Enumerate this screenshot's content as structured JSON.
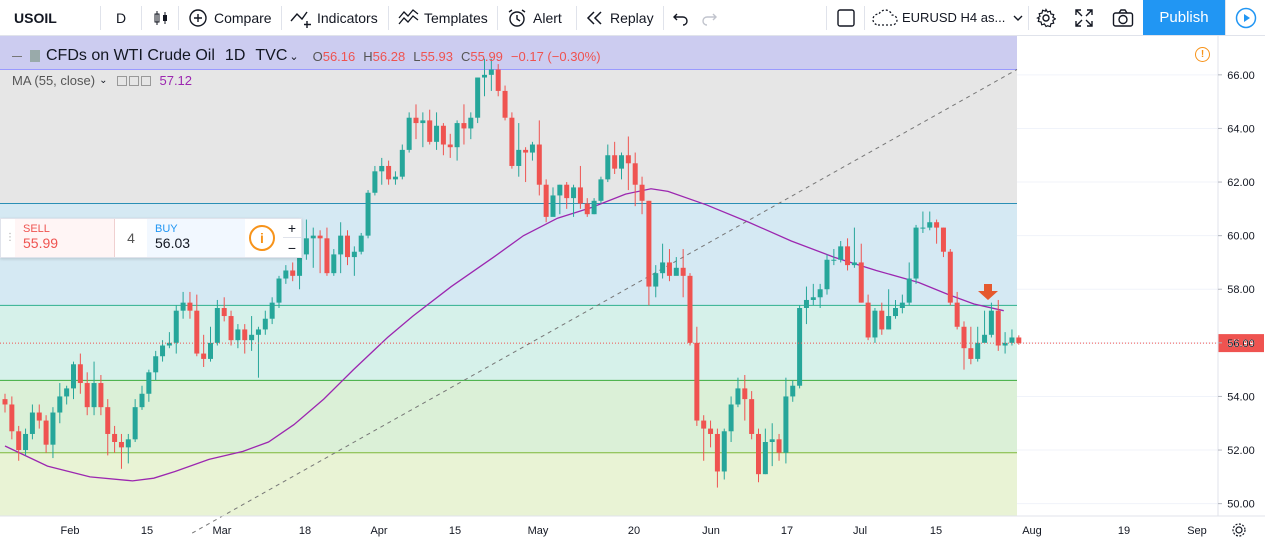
{
  "toolbar": {
    "symbol": "USOIL",
    "interval": "D",
    "compare": "Compare",
    "indicators": "Indicators",
    "templates": "Templates",
    "alert": "Alert",
    "replay": "Replay",
    "layout_name": "EURUSD H4 as...",
    "publish": "Publish"
  },
  "legend": {
    "title": "CFDs on WTI Crude Oil",
    "interval": "1D",
    "source": "TVC",
    "o_label": "O",
    "o": "56.16",
    "h_label": "H",
    "h": "56.28",
    "l_label": "L",
    "l": "55.93",
    "c_label": "C",
    "c": "55.99",
    "change": "−0.17 (−0.30%)",
    "ma_label": "MA (55, close)",
    "ma_value": "57.12"
  },
  "trade_panel": {
    "sell_label": "SELL",
    "sell_price": "55.99",
    "quantity": "4",
    "buy_label": "BUY",
    "buy_price": "56.03"
  },
  "colors": {
    "up": "#26a69a",
    "down": "#ef5350",
    "ma": "#9c27b0",
    "accent": "#2196f3",
    "alert": "#f7931a"
  },
  "chart_data": {
    "type": "candlestick",
    "ylim": [
      49.7,
      67.3
    ],
    "y_ticks": [
      "66.00",
      "64.00",
      "62.00",
      "60.00",
      "58.00",
      "56.00",
      "54.00",
      "52.00",
      "50.00"
    ],
    "x_ticks": [
      "Feb",
      "15",
      "Mar",
      "18",
      "Apr",
      "15",
      "May",
      "20",
      "Jun",
      "17",
      "Jul",
      "15",
      "Aug",
      "19",
      "Sep"
    ],
    "last_price": "55.99",
    "fib_levels": [
      66.2,
      61.2,
      57.4,
      54.6,
      51.9
    ],
    "candles": [
      [
        53.9,
        53.7,
        54.1,
        53.4
      ],
      [
        53.7,
        52.7,
        54.0,
        52.4
      ],
      [
        52.7,
        52.0,
        52.9,
        51.6
      ],
      [
        52.0,
        52.6,
        52.8,
        51.8
      ],
      [
        52.6,
        53.4,
        53.7,
        52.4
      ],
      [
        53.4,
        53.1,
        53.7,
        52.8
      ],
      [
        53.1,
        52.2,
        53.3,
        51.9
      ],
      [
        52.2,
        53.4,
        53.6,
        51.7
      ],
      [
        53.4,
        54.0,
        54.5,
        53.0
      ],
      [
        54.0,
        54.3,
        54.4,
        53.7
      ],
      [
        54.3,
        55.2,
        55.3,
        53.9
      ],
      [
        55.2,
        54.5,
        55.6,
        54.1
      ],
      [
        54.5,
        53.6,
        54.9,
        53.3
      ],
      [
        53.6,
        54.5,
        55.3,
        53.3
      ],
      [
        54.5,
        53.6,
        54.8,
        53.3
      ],
      [
        53.6,
        52.6,
        53.9,
        51.8
      ],
      [
        52.6,
        52.3,
        52.9,
        51.9
      ],
      [
        52.3,
        52.1,
        52.6,
        51.3
      ],
      [
        52.1,
        52.4,
        52.6,
        51.5
      ],
      [
        52.4,
        53.6,
        53.9,
        52.3
      ],
      [
        53.6,
        54.1,
        54.4,
        53.5
      ],
      [
        54.1,
        54.9,
        55.0,
        53.8
      ],
      [
        54.9,
        55.5,
        55.7,
        54.6
      ],
      [
        55.5,
        55.9,
        56.1,
        55.3
      ],
      [
        55.9,
        56.0,
        56.4,
        55.8
      ],
      [
        56.0,
        57.2,
        57.4,
        55.6
      ],
      [
        57.2,
        57.5,
        57.9,
        56.9
      ],
      [
        57.5,
        57.2,
        57.9,
        56.9
      ],
      [
        57.2,
        55.6,
        57.8,
        55.5
      ],
      [
        55.6,
        55.4,
        56.3,
        55.1
      ],
      [
        55.4,
        56.0,
        56.6,
        55.3
      ],
      [
        56.0,
        57.3,
        57.6,
        55.9
      ],
      [
        57.3,
        57.0,
        57.7,
        56.8
      ],
      [
        57.0,
        56.1,
        57.2,
        55.9
      ],
      [
        56.1,
        56.5,
        56.7,
        55.8
      ],
      [
        56.5,
        56.1,
        56.7,
        55.6
      ],
      [
        56.1,
        56.3,
        57.0,
        55.7
      ],
      [
        56.3,
        56.5,
        56.6,
        54.7
      ],
      [
        56.5,
        56.9,
        57.2,
        56.3
      ],
      [
        56.9,
        57.5,
        57.7,
        56.7
      ],
      [
        57.5,
        58.4,
        58.5,
        57.3
      ],
      [
        58.4,
        58.7,
        58.9,
        58.2
      ],
      [
        58.7,
        58.5,
        59.0,
        58.3
      ],
      [
        58.5,
        59.3,
        59.7,
        58.0
      ],
      [
        59.3,
        59.9,
        60.6,
        59.1
      ],
      [
        59.9,
        60.0,
        60.3,
        58.8
      ],
      [
        60.0,
        59.9,
        60.2,
        58.6
      ],
      [
        59.9,
        58.6,
        60.3,
        58.5
      ],
      [
        58.6,
        59.3,
        59.5,
        58.5
      ],
      [
        59.3,
        60.0,
        60.5,
        58.6
      ],
      [
        60.0,
        59.2,
        60.2,
        58.9
      ],
      [
        59.2,
        59.4,
        59.6,
        58.5
      ],
      [
        59.4,
        60.0,
        60.1,
        59.3
      ],
      [
        60.0,
        61.6,
        61.7,
        59.9
      ],
      [
        61.6,
        62.4,
        62.6,
        61.5
      ],
      [
        62.4,
        62.6,
        62.9,
        61.9
      ],
      [
        62.6,
        62.1,
        62.8,
        61.9
      ],
      [
        62.1,
        62.2,
        62.4,
        61.9
      ],
      [
        62.2,
        63.2,
        63.4,
        62.1
      ],
      [
        63.2,
        64.4,
        64.6,
        63.1
      ],
      [
        64.4,
        64.2,
        64.9,
        63.6
      ],
      [
        64.2,
        64.3,
        64.6,
        63.3
      ],
      [
        64.3,
        63.5,
        64.7,
        63.4
      ],
      [
        63.5,
        64.1,
        64.6,
        63.2
      ],
      [
        64.1,
        63.4,
        64.2,
        63.0
      ],
      [
        63.4,
        63.3,
        63.8,
        62.9
      ],
      [
        63.3,
        64.2,
        64.3,
        62.8
      ],
      [
        64.2,
        64.0,
        64.9,
        63.4
      ],
      [
        64.0,
        64.4,
        64.6,
        63.6
      ],
      [
        64.4,
        65.9,
        65.9,
        64.2
      ],
      [
        65.9,
        66.0,
        66.6,
        65.2
      ],
      [
        66.0,
        66.2,
        66.6,
        65.4
      ],
      [
        66.2,
        65.4,
        66.4,
        65.2
      ],
      [
        65.4,
        64.4,
        65.6,
        64.3
      ],
      [
        64.4,
        62.6,
        64.6,
        62.5
      ],
      [
        62.6,
        63.2,
        64.2,
        62.2
      ],
      [
        63.2,
        63.1,
        63.3,
        62.0
      ],
      [
        63.1,
        63.4,
        63.5,
        62.8
      ],
      [
        63.4,
        61.9,
        64.3,
        61.5
      ],
      [
        61.9,
        60.7,
        62.1,
        60.5
      ],
      [
        60.7,
        61.5,
        61.8,
        61.0
      ],
      [
        61.5,
        61.9,
        61.9,
        60.8
      ],
      [
        61.9,
        61.4,
        62.0,
        61.0
      ],
      [
        61.4,
        61.8,
        61.9,
        60.7
      ],
      [
        61.8,
        61.2,
        62.6,
        61.0
      ],
      [
        61.2,
        60.8,
        61.4,
        60.7
      ],
      [
        60.8,
        61.3,
        61.4,
        60.8
      ],
      [
        61.3,
        62.1,
        62.2,
        61.2
      ],
      [
        62.1,
        63.0,
        63.4,
        62.0
      ],
      [
        63.0,
        62.5,
        63.5,
        62.3
      ],
      [
        62.5,
        63.0,
        63.1,
        62.1
      ],
      [
        63.0,
        62.7,
        63.7,
        61.7
      ],
      [
        62.7,
        61.9,
        63.1,
        61.1
      ],
      [
        61.9,
        61.3,
        62.2,
        60.8
      ],
      [
        61.3,
        58.1,
        61.3,
        57.4
      ],
      [
        58.1,
        58.6,
        58.9,
        57.7
      ],
      [
        58.6,
        59.0,
        59.7,
        58.4
      ],
      [
        59.0,
        58.5,
        59.5,
        58.3
      ],
      [
        58.5,
        58.8,
        59.2,
        58.6
      ],
      [
        58.8,
        58.5,
        59.5,
        57.7
      ],
      [
        58.5,
        56.0,
        58.6,
        55.9
      ],
      [
        56.0,
        53.1,
        56.6,
        52.9
      ],
      [
        53.1,
        52.8,
        53.3,
        51.6
      ],
      [
        52.8,
        52.6,
        53.1,
        52.1
      ],
      [
        52.6,
        51.2,
        52.8,
        50.6
      ],
      [
        51.2,
        52.7,
        52.8,
        50.9
      ],
      [
        52.7,
        53.7,
        54.0,
        52.3
      ],
      [
        53.7,
        54.3,
        54.7,
        53.6
      ],
      [
        54.3,
        53.9,
        54.8,
        53.1
      ],
      [
        53.9,
        52.6,
        54.2,
        52.4
      ],
      [
        52.6,
        51.1,
        52.8,
        50.8
      ],
      [
        51.1,
        52.3,
        52.8,
        51.1
      ],
      [
        52.3,
        52.4,
        53.0,
        51.4
      ],
      [
        52.4,
        51.9,
        52.6,
        51.6
      ],
      [
        51.9,
        54.0,
        54.7,
        51.5
      ],
      [
        54.0,
        54.4,
        54.6,
        53.8
      ],
      [
        54.4,
        57.3,
        57.4,
        54.3
      ],
      [
        57.3,
        57.6,
        58.1,
        56.7
      ],
      [
        57.6,
        57.7,
        58.2,
        57.4
      ],
      [
        57.7,
        58.0,
        58.2,
        57.3
      ],
      [
        58.0,
        59.1,
        59.3,
        57.8
      ],
      [
        59.1,
        59.1,
        59.5,
        58.9
      ],
      [
        59.1,
        59.6,
        59.8,
        59.0
      ],
      [
        59.6,
        58.9,
        59.9,
        58.7
      ],
      [
        58.9,
        59.0,
        60.3,
        58.8
      ],
      [
        59.0,
        57.5,
        59.7,
        57.5
      ],
      [
        57.5,
        56.2,
        57.8,
        56.1
      ],
      [
        56.2,
        57.2,
        57.3,
        56.0
      ],
      [
        57.2,
        56.5,
        57.5,
        56.3
      ],
      [
        56.5,
        57.0,
        58.0,
        56.5
      ],
      [
        57.0,
        57.3,
        57.6,
        56.9
      ],
      [
        57.3,
        57.5,
        57.8,
        57.1
      ],
      [
        57.5,
        58.4,
        59.0,
        57.4
      ],
      [
        58.4,
        60.3,
        60.4,
        58.2
      ],
      [
        60.3,
        60.3,
        60.9,
        60.1
      ],
      [
        60.3,
        60.5,
        60.9,
        60.2
      ],
      [
        60.5,
        60.3,
        60.6,
        59.7
      ],
      [
        60.3,
        59.4,
        60.3,
        59.2
      ],
      [
        59.4,
        57.5,
        59.5,
        57.4
      ],
      [
        57.5,
        56.6,
        57.9,
        56.5
      ],
      [
        56.6,
        55.8,
        56.8,
        55.0
      ],
      [
        55.8,
        55.4,
        56.6,
        55.2
      ],
      [
        55.4,
        56.0,
        56.6,
        55.3
      ],
      [
        56.0,
        56.3,
        57.2,
        56.0
      ],
      [
        56.3,
        57.2,
        57.5,
        56.2
      ],
      [
        57.2,
        55.9,
        57.6,
        55.7
      ],
      [
        55.9,
        56.0,
        56.4,
        55.6
      ],
      [
        56.0,
        56.2,
        56.5,
        55.9
      ],
      [
        56.2,
        55.99,
        56.28,
        55.93
      ]
    ],
    "moving_average": {
      "name": "MA (55, close)",
      "last_value": 57.12,
      "points": [
        [
          0,
          52.15
        ],
        [
          10,
          51.4
        ],
        [
          20,
          51.0
        ],
        [
          30,
          50.85
        ],
        [
          35,
          50.95
        ],
        [
          40,
          51.2
        ],
        [
          48,
          51.65
        ],
        [
          56,
          51.95
        ],
        [
          62,
          52.3
        ],
        [
          68,
          52.95
        ],
        [
          75,
          53.9
        ],
        [
          82,
          55.0
        ],
        [
          90,
          56.2
        ],
        [
          96,
          57.0
        ],
        [
          105,
          58.1
        ],
        [
          115,
          59.2
        ],
        [
          122,
          60.0
        ],
        [
          130,
          60.65
        ],
        [
          138,
          61.05
        ],
        [
          146,
          61.55
        ],
        [
          152,
          61.75
        ],
        [
          156,
          61.65
        ],
        [
          165,
          61.15
        ],
        [
          175,
          60.5
        ],
        [
          185,
          59.8
        ],
        [
          195,
          59.2
        ],
        [
          205,
          58.7
        ],
        [
          215,
          58.25
        ],
        [
          222,
          57.8
        ],
        [
          228,
          57.45
        ],
        [
          235,
          57.2
        ]
      ]
    },
    "trend_line": [
      [
        53.6,
        48.9
      ],
      [
        66.3,
        66.2
      ]
    ]
  }
}
